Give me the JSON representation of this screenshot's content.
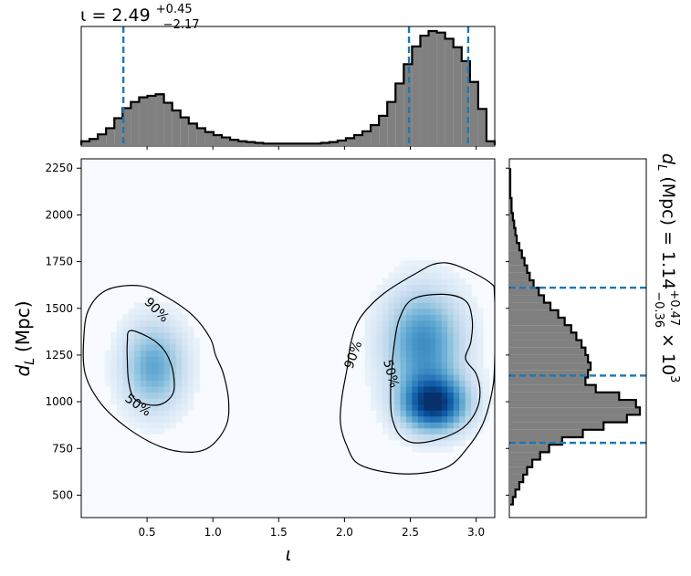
{
  "chart_data": [
    {
      "type": "histogram",
      "panel": "top-marginal",
      "title": {
        "base": "ι = 2.49",
        "sup": "+0.45",
        "sub": "−2.17"
      },
      "x_range": [
        0.0,
        3.14159
      ],
      "bin_edges": [
        0.0,
        0.0628,
        0.1257,
        0.1885,
        0.2513,
        0.3142,
        0.377,
        0.4398,
        0.5027,
        0.5655,
        0.6283,
        0.6912,
        0.754,
        0.8168,
        0.8796,
        0.9425,
        1.0053,
        1.0681,
        1.131,
        1.1938,
        1.2566,
        1.3195,
        1.3823,
        1.4451,
        1.508,
        1.5708,
        1.6336,
        1.6965,
        1.7593,
        1.8221,
        1.885,
        1.9478,
        2.0106,
        2.0735,
        2.1363,
        2.1991,
        2.2619,
        2.3248,
        2.3876,
        2.4504,
        2.5133,
        2.5761,
        2.6389,
        2.7018,
        2.7646,
        2.8274,
        2.8903,
        2.9531,
        3.0159,
        3.0788,
        3.1416
      ],
      "counts": [
        0.05,
        0.08,
        0.14,
        0.22,
        0.35,
        0.48,
        0.56,
        0.62,
        0.64,
        0.66,
        0.55,
        0.45,
        0.36,
        0.28,
        0.22,
        0.17,
        0.13,
        0.1,
        0.07,
        0.05,
        0.04,
        0.03,
        0.02,
        0.02,
        0.02,
        0.02,
        0.02,
        0.02,
        0.02,
        0.03,
        0.04,
        0.06,
        0.09,
        0.13,
        0.18,
        0.26,
        0.38,
        0.56,
        0.8,
        1.05,
        1.28,
        1.42,
        1.48,
        1.46,
        1.38,
        1.27,
        1.09,
        0.82,
        0.47,
        0.05
      ],
      "quantile_lines": [
        0.32,
        2.49,
        2.94
      ],
      "color": "#808080",
      "line_color": "#1f77b4"
    },
    {
      "type": "heatmap",
      "panel": "joint",
      "xlabel": "ι",
      "ylabel": {
        "base": "d",
        "sub": "L",
        "unit": "(Mpc)"
      },
      "xlim": [
        0.0,
        3.14159
      ],
      "ylim": [
        380,
        2300
      ],
      "x_ticks": [
        "0.5",
        "1.0",
        "1.5",
        "2.0",
        "2.5",
        "3.0"
      ],
      "y_ticks": [
        "500",
        "750",
        "1000",
        "1250",
        "1500",
        "1750",
        "2000",
        "2250"
      ],
      "colormap": "Blues",
      "modes": [
        {
          "x": 0.55,
          "y": 1190,
          "sx": 0.16,
          "sy": 160,
          "weight": 0.5
        },
        {
          "x": 2.68,
          "y": 990,
          "sx": 0.17,
          "sy": 100,
          "weight": 1.0
        },
        {
          "x": 2.6,
          "y": 1320,
          "sx": 0.2,
          "sy": 190,
          "weight": 0.62
        }
      ],
      "contours": [
        {
          "label": "90%",
          "points": [
            [
              0.2,
              1600
            ],
            [
              0.45,
              1620
            ],
            [
              0.65,
              1560
            ],
            [
              0.85,
              1460
            ],
            [
              0.98,
              1340
            ],
            [
              1.02,
              1250
            ],
            [
              1.08,
              1150
            ],
            [
              1.12,
              1000
            ],
            [
              1.1,
              870
            ],
            [
              0.98,
              760
            ],
            [
              0.82,
              730
            ],
            [
              0.6,
              760
            ],
            [
              0.35,
              860
            ],
            [
              0.15,
              990
            ],
            [
              0.03,
              1150
            ],
            [
              0.02,
              1350
            ],
            [
              0.06,
              1500
            ]
          ],
          "label_pos": [
            0.57,
            1490
          ],
          "label_angle": 45
        },
        {
          "label": "50%",
          "points": [
            [
              0.37,
              1380
            ],
            [
              0.5,
              1350
            ],
            [
              0.6,
              1300
            ],
            [
              0.66,
              1240
            ],
            [
              0.7,
              1150
            ],
            [
              0.7,
              1050
            ],
            [
              0.62,
              990
            ],
            [
              0.5,
              985
            ],
            [
              0.4,
              1020
            ],
            [
              0.36,
              1110
            ],
            [
              0.35,
              1220
            ],
            [
              0.35,
              1320
            ]
          ],
          "label_pos": [
            0.43,
            980
          ],
          "label_angle": 35
        },
        {
          "label": "90%",
          "points": [
            [
              2.85,
              1730
            ],
            [
              3.1,
              1640
            ],
            [
              3.14,
              1560
            ],
            [
              3.14,
              1200
            ],
            [
              3.12,
              1050
            ],
            [
              3.05,
              880
            ],
            [
              2.92,
              740
            ],
            [
              2.78,
              650
            ],
            [
              2.55,
              615
            ],
            [
              2.3,
              625
            ],
            [
              2.1,
              670
            ],
            [
              2.02,
              760
            ],
            [
              1.97,
              880
            ],
            [
              1.98,
              1020
            ],
            [
              2.02,
              1180
            ],
            [
              2.05,
              1320
            ],
            [
              2.12,
              1450
            ],
            [
              2.3,
              1580
            ],
            [
              2.55,
              1690
            ],
            [
              2.7,
              1740
            ]
          ],
          "label_pos": [
            2.07,
            1250
          ],
          "label_angle": -70
        },
        {
          "label": "50%",
          "points": [
            [
              2.52,
              1550
            ],
            [
              2.75,
              1575
            ],
            [
              2.92,
              1540
            ],
            [
              2.97,
              1440
            ],
            [
              2.96,
              1320
            ],
            [
              2.92,
              1230
            ],
            [
              3.0,
              1150
            ],
            [
              3.03,
              1050
            ],
            [
              3.0,
              950
            ],
            [
              2.9,
              860
            ],
            [
              2.72,
              800
            ],
            [
              2.53,
              780
            ],
            [
              2.42,
              820
            ],
            [
              2.36,
              920
            ],
            [
              2.35,
              1050
            ],
            [
              2.36,
              1180
            ],
            [
              2.38,
              1320
            ],
            [
              2.42,
              1450
            ]
          ],
          "label_pos": [
            2.35,
            1150
          ],
          "label_angle": 75
        }
      ]
    },
    {
      "type": "histogram",
      "panel": "right-marginal",
      "orientation": "horizontal",
      "title": {
        "base": "d",
        "sub_L": "L",
        "unit": "(Mpc) = 1.14",
        "sup": "+0.47",
        "sub": "−0.36",
        "tail": "× 10",
        "exp": "3"
      },
      "y_range": [
        380,
        2300
      ],
      "bin_edges": [
        450,
        490,
        530,
        570,
        610,
        650,
        690,
        730,
        770,
        810,
        850,
        890,
        930,
        970,
        1010,
        1050,
        1090,
        1130,
        1170,
        1210,
        1250,
        1290,
        1330,
        1370,
        1410,
        1450,
        1490,
        1530,
        1570,
        1610,
        1650,
        1690,
        1730,
        1770,
        1810,
        1850,
        1890,
        1930,
        1970,
        2010,
        2050,
        2090,
        2130,
        2170,
        2210,
        2250
      ],
      "counts": [
        0.02,
        0.04,
        0.07,
        0.1,
        0.13,
        0.17,
        0.23,
        0.3,
        0.4,
        0.56,
        0.72,
        0.9,
        1.0,
        0.97,
        0.84,
        0.66,
        0.58,
        0.6,
        0.62,
        0.6,
        0.58,
        0.55,
        0.51,
        0.47,
        0.42,
        0.37,
        0.31,
        0.26,
        0.22,
        0.18,
        0.15,
        0.13,
        0.11,
        0.09,
        0.07,
        0.05,
        0.04,
        0.03,
        0.02,
        0.01,
        0.01,
        0.0,
        0.0,
        0.0,
        0.0
      ],
      "quantile_lines": [
        780,
        1140,
        1610
      ],
      "color": "#808080",
      "line_color": "#1f77b4"
    }
  ]
}
